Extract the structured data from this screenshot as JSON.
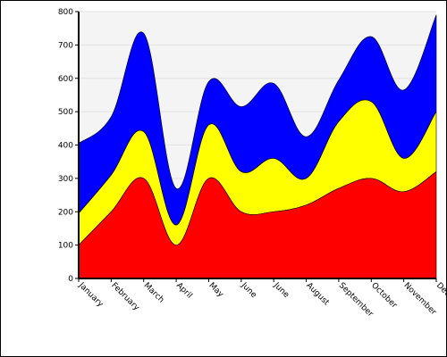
{
  "chart_data": {
    "type": "area",
    "stacked": true,
    "title": "",
    "xlabel": "",
    "ylabel": "",
    "ylim": [
      0,
      800
    ],
    "yticks": [
      0,
      100,
      200,
      300,
      400,
      500,
      600,
      700,
      800
    ],
    "categories": [
      "January",
      "February",
      "March",
      "April",
      "May",
      "June",
      "June",
      "August",
      "September",
      "October",
      "November",
      "Dec"
    ],
    "grid": true,
    "legend": "none",
    "series": [
      {
        "color": "#ff0000",
        "values": [
          100,
          200,
          300,
          100,
          300,
          200,
          200,
          220,
          270,
          300,
          260,
          320
        ]
      },
      {
        "color": "#ffff00",
        "values": [
          95,
          110,
          140,
          60,
          160,
          120,
          160,
          80,
          200,
          230,
          100,
          180
        ]
      },
      {
        "color": "#0000ff",
        "values": [
          210,
          175,
          295,
          110,
          130,
          195,
          225,
          125,
          125,
          195,
          205,
          290
        ]
      }
    ],
    "plot_background": "#f4f4f4",
    "border_color": "#000000"
  }
}
